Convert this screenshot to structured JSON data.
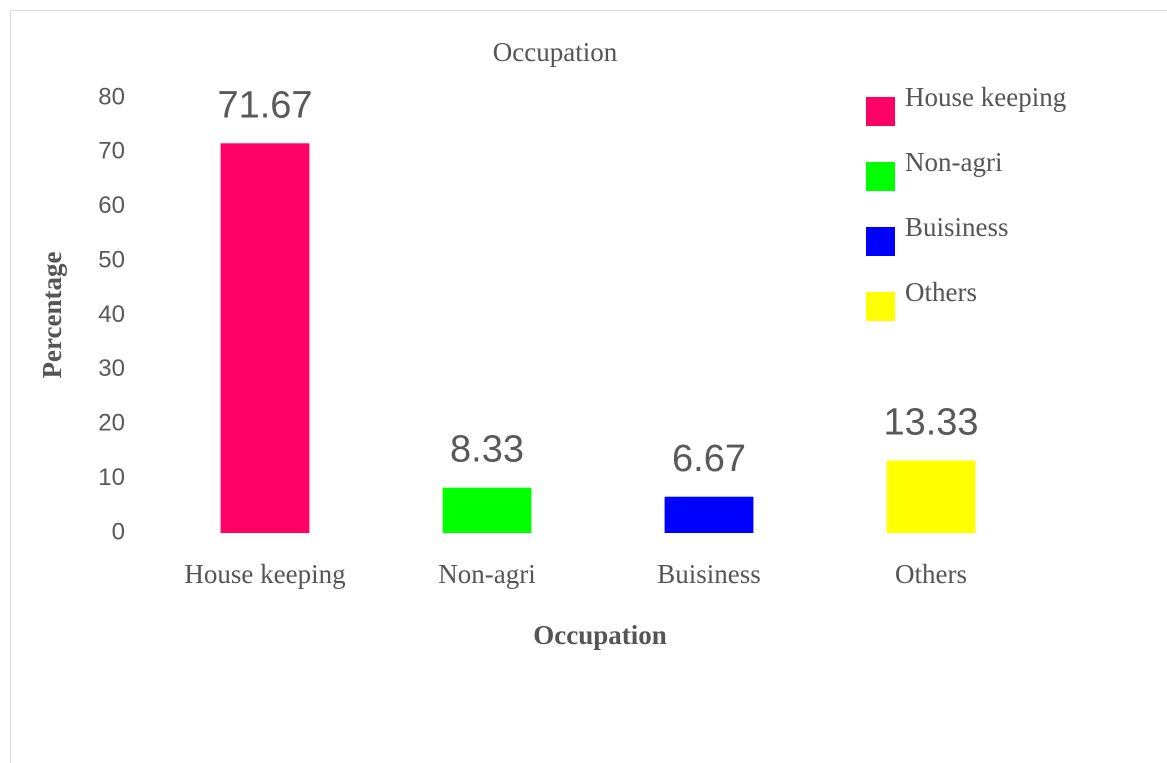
{
  "chart_data": {
    "type": "bar",
    "title": "Occupation",
    "x_label": "Occupation",
    "y_label": "Percentage",
    "categories": [
      "House keeping",
      "Non-agri",
      "Buisiness",
      "Others"
    ],
    "values": [
      71.67,
      8.33,
      6.67,
      13.33
    ],
    "colors": [
      "#ff0066",
      "#00ff00",
      "#0000ff",
      "#ffff00"
    ],
    "ylim": [
      0,
      80
    ],
    "yticks": [
      0,
      10,
      20,
      30,
      40,
      50,
      60,
      70,
      80
    ],
    "grid": false,
    "legend": "right"
  }
}
